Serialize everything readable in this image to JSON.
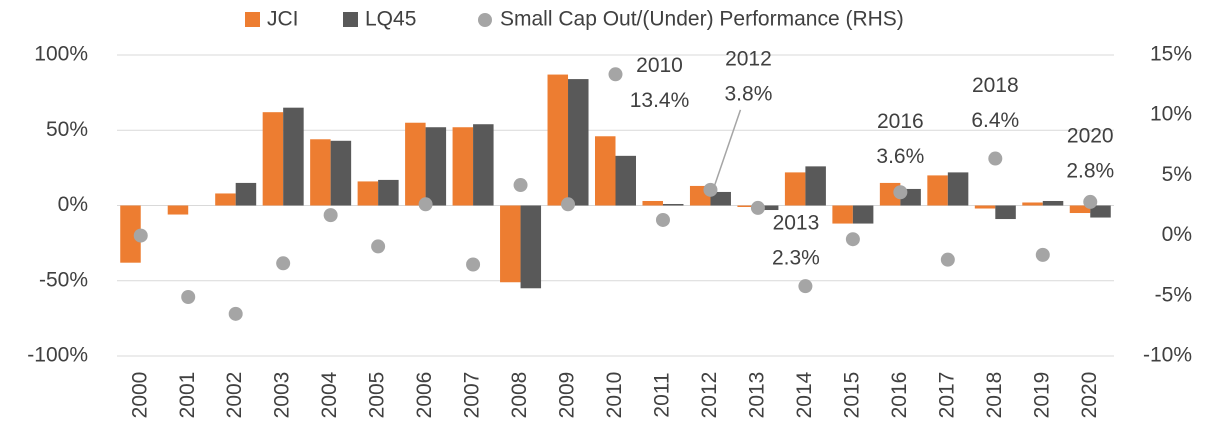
{
  "chart_data": {
    "type": "bar",
    "categories": [
      "2000",
      "2001",
      "2002",
      "2003",
      "2004",
      "2005",
      "2006",
      "2007",
      "2008",
      "2009",
      "2010",
      "2011",
      "2012",
      "2013",
      "2014",
      "2015",
      "2016",
      "2017",
      "2018",
      "2019",
      "2020"
    ],
    "series": [
      {
        "name": "JCI",
        "color": "#ed7d31",
        "values": [
          -38,
          -6,
          8,
          62,
          44,
          16,
          55,
          52,
          -51,
          87,
          46,
          3,
          13,
          -1,
          22,
          -12,
          15,
          20,
          -2,
          2,
          -5
        ]
      },
      {
        "name": "LQ45",
        "color": "#595959",
        "values": [
          null,
          null,
          15,
          65,
          43,
          17,
          52,
          54,
          -55,
          84,
          33,
          1,
          9,
          -3,
          26,
          -12,
          11,
          22,
          -9,
          3,
          -8
        ]
      },
      {
        "name": "Small Cap Out/(Under) Performance (RHS)",
        "color": "#a5a5a5",
        "type": "scatter",
        "axis": "y2",
        "values": [
          0.0,
          -5.1,
          -6.5,
          -2.3,
          1.7,
          -0.9,
          2.6,
          -2.4,
          4.2,
          2.6,
          13.4,
          1.3,
          3.8,
          2.3,
          -4.2,
          -0.3,
          3.6,
          -2.0,
          6.4,
          -1.6,
          2.8
        ],
        "value_labels": [
          null,
          null,
          null,
          null,
          null,
          null,
          null,
          null,
          null,
          null,
          "13.4%",
          null,
          "3.8%",
          "2.3%",
          null,
          null,
          "3.6%",
          null,
          "6.4%",
          null,
          "2.8%"
        ]
      }
    ],
    "ylim": [
      -100,
      100
    ],
    "yticks": [
      {
        "value": -100,
        "label": "-100%"
      },
      {
        "value": -50,
        "label": "-50%"
      },
      {
        "value": 0,
        "label": "0%"
      },
      {
        "value": 50,
        "label": "50%"
      },
      {
        "value": 100,
        "label": "100%"
      }
    ],
    "y2lim": [
      -10,
      15
    ],
    "y2ticks": [
      {
        "value": -10,
        "label": "-10%"
      },
      {
        "value": -5,
        "label": "-5%"
      },
      {
        "value": 0,
        "label": "0%"
      },
      {
        "value": 5,
        "label": "5%"
      },
      {
        "value": 10,
        "label": "10%"
      },
      {
        "value": 15,
        "label": "15%"
      }
    ],
    "grid": true,
    "legend": "top"
  }
}
